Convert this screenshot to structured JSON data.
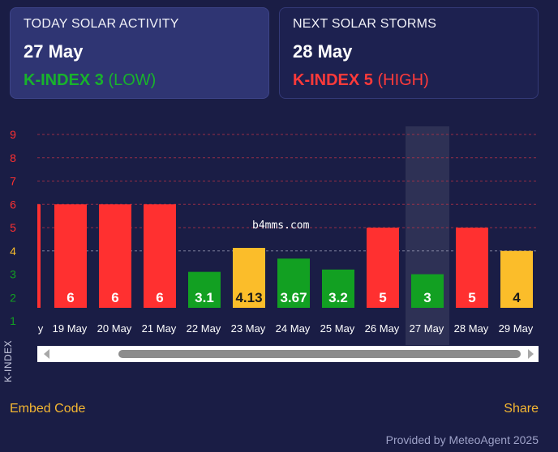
{
  "today": {
    "title": "TODAY SOLAR ACTIVITY",
    "date": "27 May",
    "kindex_label": "K-INDEX 3",
    "level": "(LOW)",
    "color": "#18b32c"
  },
  "next": {
    "title": "NEXT SOLAR STORMS",
    "date": "28 May",
    "kindex_label": "K-INDEX 5",
    "level": "(HIGH)",
    "color": "#ff3a3a"
  },
  "watermark": "b4mms.com",
  "links": {
    "embed": "Embed Code",
    "share": "Share"
  },
  "provided_by": "Provided by MeteoAgent 2025",
  "colors": {
    "low": "#12a022",
    "moderate": "#fbbd2a",
    "high": "#ff3030",
    "background": "#1a1d45"
  },
  "chart_data": {
    "type": "bar",
    "ylabel": "K-INDEX",
    "ylim": [
      1,
      9
    ],
    "yticks": [
      1,
      2,
      3,
      4,
      5,
      6,
      7,
      8,
      9
    ],
    "partial_left_label": "y",
    "partial_left_value": 6,
    "highlighted_category": "27 May",
    "categories": [
      "19 May",
      "20 May",
      "21 May",
      "22 May",
      "23 May",
      "24 May",
      "25 May",
      "26 May",
      "27 May",
      "28 May",
      "29 May"
    ],
    "values": [
      6,
      6,
      6,
      3.1,
      4.13,
      3.67,
      3.2,
      5,
      3,
      5,
      4
    ],
    "value_labels": [
      "6",
      "6",
      "6",
      "3.1",
      "4.13",
      "3.67",
      "3.2",
      "5",
      "3",
      "5",
      "4"
    ]
  }
}
